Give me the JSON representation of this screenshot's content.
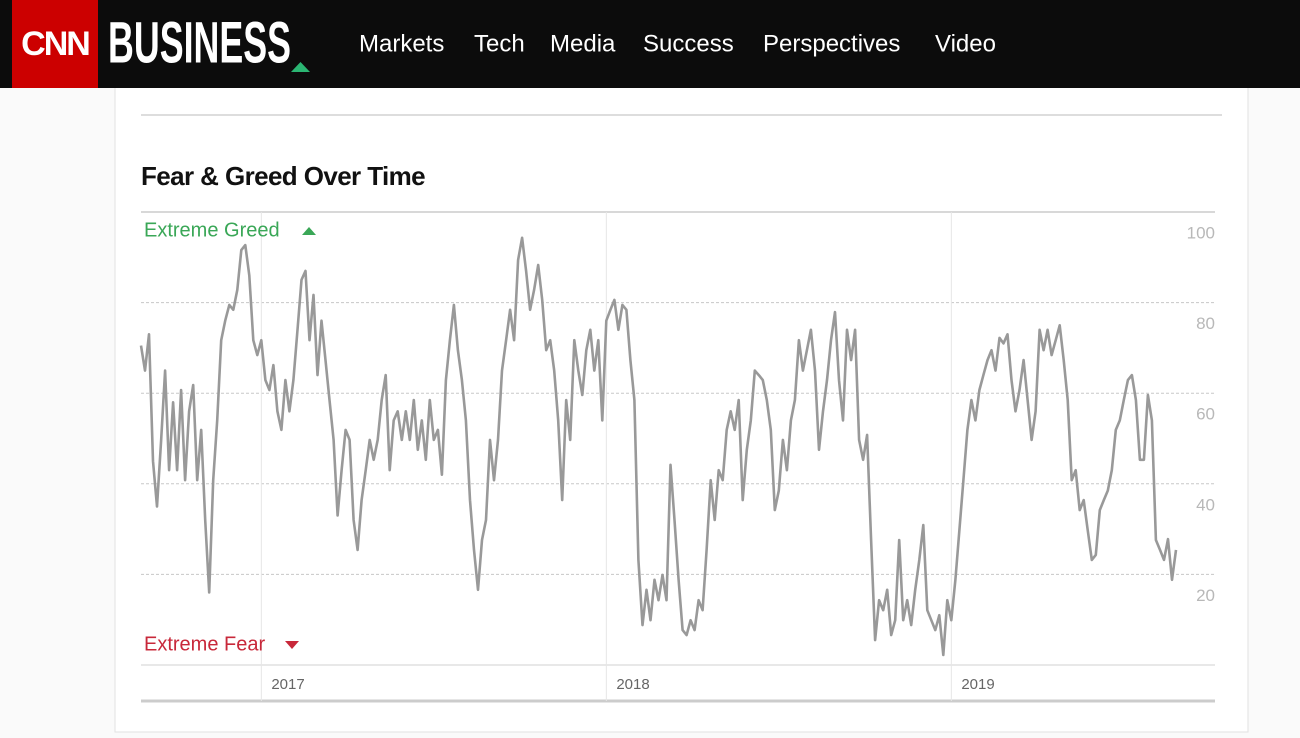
{
  "header": {
    "logo": "CNN",
    "brand": "BUSINESS",
    "nav": [
      "Markets",
      "Tech",
      "Media",
      "Success",
      "Perspectives",
      "Video"
    ]
  },
  "chart_data": {
    "type": "line",
    "title": "Fear & Greed Over Time",
    "annotations": [
      "Extreme Greed",
      "Extreme Fear"
    ],
    "color": "#999999",
    "grid": true,
    "ylim": [
      0,
      100
    ],
    "yticks": [
      20,
      40,
      60,
      80,
      100
    ],
    "categories": [
      null,
      null,
      null,
      null,
      null,
      null,
      null,
      null,
      null,
      null,
      null,
      null,
      null,
      null,
      null,
      null,
      null,
      null,
      null,
      null,
      null,
      null,
      null,
      null,
      null,
      null,
      null,
      null,
      null,
      null,
      "2017",
      null,
      null,
      null,
      null,
      null,
      null,
      null,
      null,
      null,
      null,
      null,
      null,
      null,
      null,
      null,
      null,
      null,
      null,
      null,
      null,
      null,
      null,
      null,
      null,
      null,
      null,
      null,
      null,
      null,
      null,
      null,
      null,
      null,
      null,
      null,
      null,
      null,
      null,
      null,
      null,
      null,
      null,
      null,
      null,
      null,
      null,
      null,
      null,
      null,
      null,
      null,
      null,
      null,
      null,
      null,
      null,
      null,
      null,
      null,
      null,
      null,
      null,
      null,
      null,
      null,
      null,
      null,
      null,
      null,
      null,
      null,
      null,
      null,
      null,
      null,
      null,
      null,
      null,
      null,
      null,
      null,
      null,
      null,
      null,
      null,
      "2018",
      null,
      null,
      null,
      null,
      null,
      null,
      null,
      null,
      null,
      null,
      null,
      null,
      null,
      null,
      null,
      null,
      null,
      null,
      null,
      null,
      null,
      null,
      null,
      null,
      null,
      null,
      null,
      null,
      null,
      null,
      null,
      null,
      null,
      null,
      null,
      null,
      null,
      null,
      null,
      null,
      null,
      null,
      null,
      null,
      null,
      null,
      null,
      null,
      null,
      null,
      null,
      null,
      null,
      null,
      null,
      null,
      null,
      null,
      null,
      null,
      null,
      null,
      null,
      null,
      null,
      null,
      null,
      null,
      null,
      null,
      null,
      null,
      null,
      null,
      null,
      null,
      null,
      null,
      null,
      null,
      null,
      null,
      null,
      null,
      null,
      "2019",
      null,
      null,
      null,
      null,
      null,
      null,
      null,
      null,
      null,
      null,
      null,
      null,
      null,
      null,
      null,
      null,
      null,
      null,
      null,
      null,
      null,
      null,
      null,
      null,
      null,
      null,
      null,
      null,
      null,
      null,
      null,
      null,
      null,
      null,
      null,
      null,
      null,
      null,
      null,
      null,
      null,
      null,
      null,
      null,
      null,
      null,
      null,
      null,
      null,
      null,
      null,
      null,
      null,
      null,
      null,
      null
    ],
    "values": [
      70.5,
      65,
      73,
      45,
      35,
      49.5,
      65,
      43,
      58,
      43,
      60.7,
      40.8,
      56,
      61.8,
      40.8,
      51.9,
      32,
      16,
      40.8,
      54,
      71.7,
      76,
      79.5,
      78.4,
      82.8,
      91.6,
      92.7,
      86,
      71.7,
      68.4,
      71.7,
      62.9,
      60.7,
      66.2,
      56,
      51.9,
      62.9,
      56,
      62.9,
      74,
      85,
      87,
      71.7,
      81.7,
      64,
      76,
      67.3,
      58.5,
      49.7,
      33,
      43,
      51.9,
      49.7,
      32,
      25.4,
      36.4,
      43,
      49.7,
      45.3,
      49.7,
      58.5,
      64,
      43,
      54,
      56,
      49.7,
      56,
      49.7,
      58.5,
      47.5,
      54,
      45.3,
      58.5,
      49.7,
      51.9,
      42,
      62.9,
      71.7,
      79.5,
      69.5,
      62.9,
      54,
      36.4,
      25.4,
      16.6,
      27.6,
      32,
      49.7,
      40.8,
      49.7,
      65,
      71.7,
      78.4,
      71.7,
      89.4,
      94.3,
      87,
      78.4,
      82.8,
      88.3,
      80.6,
      69.5,
      71.7,
      65,
      54,
      36.4,
      58.5,
      49.7,
      71.7,
      65,
      59.6,
      69.5,
      74,
      65,
      71.7,
      54,
      76,
      78.4,
      80.6,
      74,
      79.5,
      78.4,
      67.3,
      58.5,
      23.2,
      8.8,
      16.6,
      9.9,
      18.8,
      14.3,
      19.9,
      14.3,
      44.2,
      32,
      18.8,
      7.7,
      6.6,
      9.9,
      7.7,
      14.3,
      12.1,
      25.4,
      40.8,
      32,
      43,
      40.8,
      51.9,
      56,
      51.9,
      58.5,
      36.4,
      47.5,
      54,
      65,
      64,
      62.9,
      58.5,
      51.9,
      34.2,
      38.5,
      49.7,
      43,
      54,
      58.5,
      71.7,
      65,
      69.5,
      74,
      65,
      47.5,
      56,
      62.9,
      71.7,
      77.9,
      62.9,
      54,
      74,
      67.3,
      74,
      49.7,
      45.3,
      50.8,
      27.6,
      5.5,
      14.3,
      12.1,
      16.6,
      6.6,
      9.9,
      27.6,
      9.9,
      14.3,
      8.8,
      16.6,
      23.2,
      30.9,
      12.1,
      9.9,
      7.7,
      11,
      2.2,
      14.3,
      9.9,
      18.8,
      29.8,
      40.8,
      51.9,
      58.5,
      54,
      60.7,
      64,
      67.3,
      69.5,
      65,
      72.2,
      71,
      73,
      62.9,
      56,
      60.7,
      67.3,
      58.5,
      49.7,
      56,
      74,
      69.5,
      74,
      68.4,
      71.7,
      75,
      67.3,
      58.5,
      40.8,
      43,
      34.2,
      36.4,
      29.8,
      23.2,
      24.3,
      34.2,
      36.4,
      38.5,
      43,
      51.9,
      54,
      58.5,
      62.9,
      64,
      58.5,
      45.3,
      45.3,
      59.6,
      54,
      27.6,
      25.4,
      23.2,
      27.8,
      18.8,
      25.4
    ]
  }
}
